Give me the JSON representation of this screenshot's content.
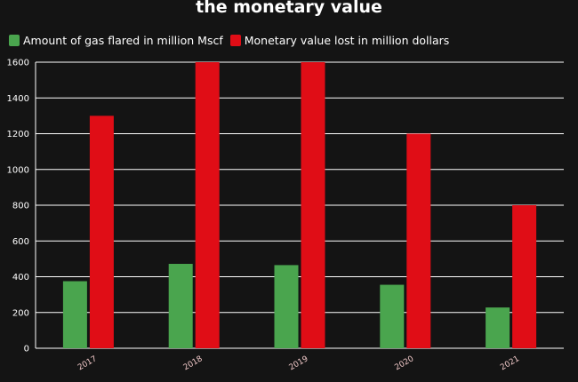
{
  "chart_data": {
    "type": "bar",
    "title": "the monetary value",
    "categories": [
      "2017",
      "2018",
      "2019",
      "2020",
      "2021"
    ],
    "series": [
      {
        "name": "Amount of gas flared in million Mscf",
        "color": "#4aa54e",
        "values": [
          375,
          472,
          465,
          355,
          228
        ]
      },
      {
        "name": "Monetary value lost in million dollars",
        "color": "#e00d16",
        "values": [
          1300,
          1600,
          1600,
          1200,
          800
        ]
      }
    ],
    "yticks": [
      "0",
      "200",
      "400",
      "600",
      "800",
      "1000",
      "1200",
      "1400",
      "1600"
    ],
    "ylim": [
      0,
      1600
    ],
    "grid": true,
    "legend_position": "top-left"
  }
}
